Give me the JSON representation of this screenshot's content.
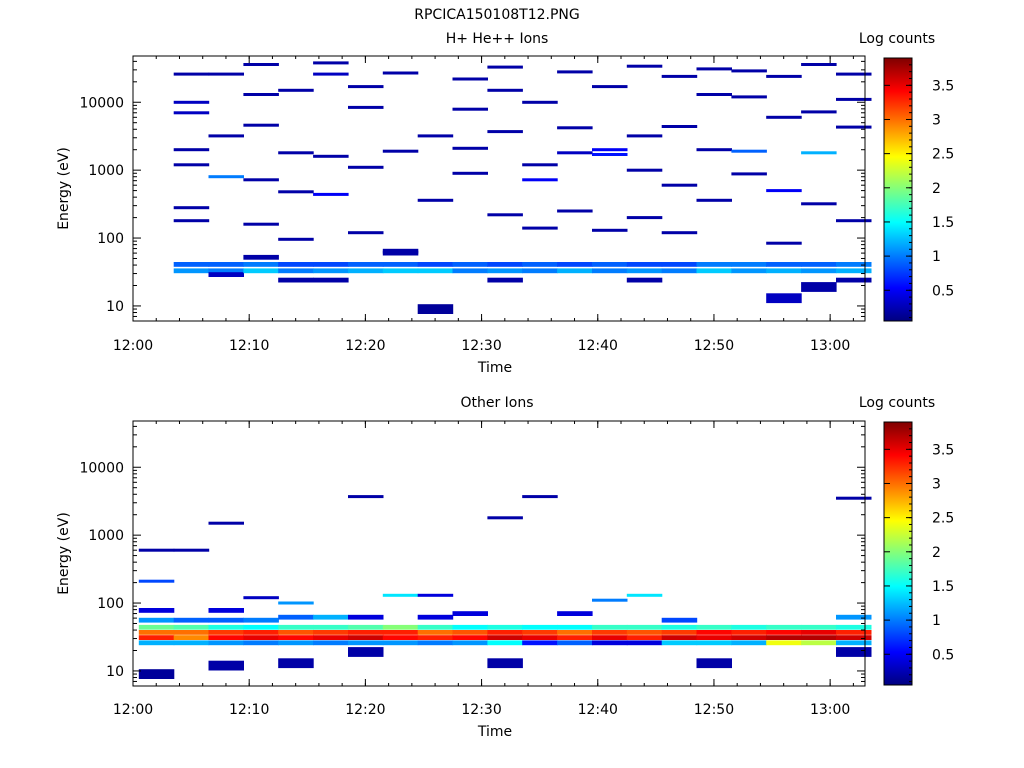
{
  "figure": {
    "title": "RPCICA150108T12.PNG"
  },
  "palette": {
    "colorbar_stops": [
      "#00007f",
      "#0000ff",
      "#007fff",
      "#00ffff",
      "#7fff7f",
      "#ffff00",
      "#ff7f00",
      "#ff0000",
      "#7f0000"
    ],
    "background": "#ffffff",
    "axis": "#000000"
  },
  "chart_data": [
    {
      "type": "heatmap",
      "title": "H+ He++ Ions",
      "xlabel": "Time",
      "ylabel": "Energy (eV)",
      "yscale": "log",
      "ylim": [
        6,
        48000
      ],
      "xlim": [
        "12:00",
        "13:03"
      ],
      "x_ticks": [
        "12:00",
        "12:10",
        "12:20",
        "12:30",
        "12:40",
        "12:50",
        "13:00"
      ],
      "y_ticks": [
        "10",
        "100",
        "1000",
        "10000"
      ],
      "colorbar": {
        "label": "Log counts",
        "ticks": [
          "0.5",
          "1",
          "1.5",
          "2",
          "2.5",
          "3",
          "3.5"
        ],
        "range": [
          0.05,
          3.9
        ]
      },
      "time_bins": [
        "12:02",
        "12:05",
        "12:08",
        "12:11",
        "12:14",
        "12:17",
        "12:20",
        "12:23",
        "12:26",
        "12:29",
        "12:32",
        "12:35",
        "12:38",
        "12:41",
        "12:44",
        "12:47",
        "12:50",
        "12:53",
        "12:56",
        "12:59",
        "13:02"
      ],
      "cells_note": "values in log counts; first number of each triple = time bin index, second = energy in eV, third = log counts",
      "cells": [
        [
          1,
          41,
          0.9
        ],
        [
          1,
          33,
          1.1
        ],
        [
          2,
          41,
          0.9
        ],
        [
          2,
          33,
          1.0
        ],
        [
          2,
          29,
          0.3
        ],
        [
          3,
          41,
          1.0
        ],
        [
          3,
          33,
          1.3
        ],
        [
          3,
          52,
          0.2
        ],
        [
          4,
          41,
          0.8
        ],
        [
          4,
          33,
          1.0
        ],
        [
          4,
          24,
          0.2
        ],
        [
          5,
          41,
          0.8
        ],
        [
          5,
          33,
          1.1
        ],
        [
          5,
          24,
          0.2
        ],
        [
          6,
          41,
          0.9
        ],
        [
          6,
          33,
          1.2
        ],
        [
          7,
          41,
          0.9
        ],
        [
          7,
          33,
          1.3
        ],
        [
          7,
          60,
          0.2
        ],
        [
          8,
          41,
          0.8
        ],
        [
          8,
          33,
          1.3
        ],
        [
          8,
          9,
          0.15
        ],
        [
          9,
          41,
          0.9
        ],
        [
          9,
          33,
          1.0
        ],
        [
          10,
          41,
          0.8
        ],
        [
          10,
          33,
          1.1
        ],
        [
          10,
          24,
          0.2
        ],
        [
          11,
          41,
          0.9
        ],
        [
          11,
          33,
          1.0
        ],
        [
          12,
          41,
          0.8
        ],
        [
          12,
          33,
          1.2
        ],
        [
          13,
          41,
          0.9
        ],
        [
          13,
          33,
          1.0
        ],
        [
          14,
          41,
          0.8
        ],
        [
          14,
          33,
          1.1
        ],
        [
          14,
          24,
          0.2
        ],
        [
          15,
          41,
          0.8
        ],
        [
          15,
          33,
          1.0
        ],
        [
          16,
          41,
          1.0
        ],
        [
          16,
          33,
          1.3
        ],
        [
          17,
          41,
          1.0
        ],
        [
          17,
          33,
          1.1
        ],
        [
          18,
          41,
          0.9
        ],
        [
          18,
          33,
          1.2
        ],
        [
          18,
          13,
          0.3
        ],
        [
          19,
          41,
          0.9
        ],
        [
          19,
          33,
          1.1
        ],
        [
          19,
          19,
          0.2
        ],
        [
          20,
          41,
          1.0
        ],
        [
          20,
          33,
          1.2
        ],
        [
          20,
          24,
          0.2
        ],
        [
          1,
          26000,
          0.2
        ],
        [
          1,
          10000,
          0.3
        ],
        [
          1,
          7000,
          0.3
        ],
        [
          1,
          2000,
          0.2
        ],
        [
          1,
          1200,
          0.2
        ],
        [
          1,
          280,
          0.2
        ],
        [
          1,
          180,
          0.2
        ],
        [
          2,
          26000,
          0.2
        ],
        [
          2,
          3200,
          0.2
        ],
        [
          2,
          800,
          1.0
        ],
        [
          3,
          36000,
          0.2
        ],
        [
          3,
          13000,
          0.2
        ],
        [
          3,
          4600,
          0.2
        ],
        [
          3,
          720,
          0.2
        ],
        [
          3,
          160,
          0.2
        ],
        [
          4,
          15000,
          0.2
        ],
        [
          4,
          1800,
          0.2
        ],
        [
          4,
          480,
          0.2
        ],
        [
          4,
          96,
          0.2
        ],
        [
          5,
          38000,
          0.2
        ],
        [
          5,
          26000,
          0.3
        ],
        [
          5,
          1600,
          0.2
        ],
        [
          5,
          440,
          0.5
        ],
        [
          6,
          17000,
          0.2
        ],
        [
          6,
          8400,
          0.2
        ],
        [
          6,
          1100,
          0.2
        ],
        [
          6,
          120,
          0.2
        ],
        [
          7,
          27000,
          0.2
        ],
        [
          7,
          1900,
          0.2
        ],
        [
          7,
          64,
          0.2
        ],
        [
          8,
          3200,
          0.2
        ],
        [
          8,
          360,
          0.2
        ],
        [
          9,
          22000,
          0.2
        ],
        [
          9,
          7900,
          0.2
        ],
        [
          9,
          2100,
          0.2
        ],
        [
          9,
          900,
          0.2
        ],
        [
          10,
          33000,
          0.2
        ],
        [
          10,
          15000,
          0.2
        ],
        [
          10,
          3700,
          0.2
        ],
        [
          10,
          220,
          0.2
        ],
        [
          11,
          10000,
          0.2
        ],
        [
          11,
          1200,
          0.2
        ],
        [
          11,
          720,
          0.5
        ],
        [
          11,
          140,
          0.2
        ],
        [
          12,
          28000,
          0.2
        ],
        [
          12,
          4200,
          0.2
        ],
        [
          12,
          1800,
          0.3
        ],
        [
          12,
          250,
          0.2
        ],
        [
          13,
          17000,
          0.2
        ],
        [
          13,
          2000,
          0.5
        ],
        [
          13,
          1700,
          0.6
        ],
        [
          13,
          130,
          0.2
        ],
        [
          14,
          34000,
          0.2
        ],
        [
          14,
          3200,
          0.2
        ],
        [
          14,
          1000,
          0.2
        ],
        [
          14,
          200,
          0.2
        ],
        [
          15,
          24000,
          0.2
        ],
        [
          15,
          4400,
          0.2
        ],
        [
          15,
          600,
          0.2
        ],
        [
          15,
          120,
          0.2
        ],
        [
          16,
          31000,
          0.2
        ],
        [
          16,
          13000,
          0.2
        ],
        [
          16,
          2000,
          0.2
        ],
        [
          16,
          360,
          0.2
        ],
        [
          17,
          29000,
          0.2
        ],
        [
          17,
          12000,
          0.2
        ],
        [
          17,
          1900,
          0.9
        ],
        [
          17,
          880,
          0.2
        ],
        [
          18,
          24000,
          0.2
        ],
        [
          18,
          6000,
          0.2
        ],
        [
          18,
          500,
          0.5
        ],
        [
          18,
          84,
          0.2
        ],
        [
          19,
          36000,
          0.2
        ],
        [
          19,
          7200,
          0.2
        ],
        [
          19,
          1800,
          1.2
        ],
        [
          19,
          320,
          0.2
        ],
        [
          20,
          26000,
          0.2
        ],
        [
          20,
          11000,
          0.2
        ],
        [
          20,
          4300,
          0.2
        ],
        [
          20,
          180,
          0.2
        ]
      ]
    },
    {
      "type": "heatmap",
      "title": "Other Ions",
      "xlabel": "Time",
      "ylabel": "Energy (eV)",
      "yscale": "log",
      "ylim": [
        6,
        48000
      ],
      "xlim": [
        "12:00",
        "13:03"
      ],
      "x_ticks": [
        "12:00",
        "12:10",
        "12:20",
        "12:30",
        "12:40",
        "12:50",
        "13:00"
      ],
      "y_ticks": [
        "10",
        "100",
        "1000",
        "10000"
      ],
      "colorbar": {
        "label": "Log counts",
        "ticks": [
          "0.5",
          "1",
          "1.5",
          "2",
          "2.5",
          "3",
          "3.5"
        ],
        "range": [
          0.05,
          3.9
        ]
      },
      "time_bins": [
        "12:02",
        "12:05",
        "12:08",
        "12:11",
        "12:14",
        "12:17",
        "12:20",
        "12:23",
        "12:26",
        "12:29",
        "12:32",
        "12:35",
        "12:38",
        "12:41",
        "12:44",
        "12:47",
        "12:50",
        "12:53",
        "12:56",
        "12:59",
        "13:02"
      ],
      "cells_note": "values in log counts; first number of each triple = time bin index, second = energy in eV, third = log counts",
      "cells": [
        [
          0,
          44,
          1.9
        ],
        [
          0,
          37,
          3.0
        ],
        [
          0,
          31,
          3.3
        ],
        [
          0,
          26,
          1.2
        ],
        [
          0,
          56,
          1.1
        ],
        [
          0,
          78,
          0.4
        ],
        [
          0,
          9,
          0.15
        ],
        [
          0,
          210,
          0.8
        ],
        [
          0,
          600,
          0.2
        ],
        [
          1,
          44,
          1.8
        ],
        [
          1,
          37,
          3.0
        ],
        [
          1,
          31,
          2.9
        ],
        [
          1,
          26,
          1.2
        ],
        [
          1,
          56,
          0.9
        ],
        [
          1,
          600,
          0.2
        ],
        [
          2,
          44,
          1.6
        ],
        [
          2,
          37,
          3.2
        ],
        [
          2,
          31,
          3.4
        ],
        [
          2,
          26,
          1.1
        ],
        [
          2,
          56,
          0.9
        ],
        [
          2,
          78,
          0.4
        ],
        [
          2,
          12,
          0.2
        ],
        [
          2,
          1500,
          0.2
        ],
        [
          3,
          44,
          1.5
        ],
        [
          3,
          37,
          3.3
        ],
        [
          3,
          31,
          3.5
        ],
        [
          3,
          26,
          1.0
        ],
        [
          3,
          56,
          1.0
        ],
        [
          3,
          120,
          0.3
        ],
        [
          4,
          44,
          1.7
        ],
        [
          4,
          37,
          3.1
        ],
        [
          4,
          31,
          3.4
        ],
        [
          4,
          26,
          1.1
        ],
        [
          4,
          62,
          0.9
        ],
        [
          4,
          100,
          1.1
        ],
        [
          4,
          13,
          0.2
        ],
        [
          5,
          44,
          1.7
        ],
        [
          5,
          37,
          3.2
        ],
        [
          5,
          31,
          3.5
        ],
        [
          5,
          26,
          1.0
        ],
        [
          5,
          62,
          1.2
        ],
        [
          6,
          44,
          1.8
        ],
        [
          6,
          37,
          3.3
        ],
        [
          6,
          31,
          3.6
        ],
        [
          6,
          26,
          1.1
        ],
        [
          6,
          62,
          0.4
        ],
        [
          6,
          19,
          0.2
        ],
        [
          6,
          3700,
          0.2
        ],
        [
          7,
          44,
          2.0
        ],
        [
          7,
          37,
          3.3
        ],
        [
          7,
          31,
          3.4
        ],
        [
          7,
          26,
          1.1
        ],
        [
          7,
          130,
          1.4
        ],
        [
          8,
          44,
          1.7
        ],
        [
          8,
          37,
          3.0
        ],
        [
          8,
          31,
          3.3
        ],
        [
          8,
          26,
          1.0
        ],
        [
          8,
          62,
          0.4
        ],
        [
          8,
          130,
          0.4
        ],
        [
          9,
          44,
          1.5
        ],
        [
          9,
          37,
          3.1
        ],
        [
          9,
          31,
          3.4
        ],
        [
          9,
          26,
          1.1
        ],
        [
          9,
          70,
          0.4
        ],
        [
          10,
          44,
          1.6
        ],
        [
          10,
          37,
          3.3
        ],
        [
          10,
          31,
          3.6
        ],
        [
          10,
          26,
          1.5
        ],
        [
          10,
          13,
          0.2
        ],
        [
          10,
          1800,
          0.2
        ],
        [
          11,
          44,
          1.5
        ],
        [
          11,
          37,
          3.2
        ],
        [
          11,
          31,
          3.5
        ],
        [
          11,
          26,
          0.6
        ],
        [
          11,
          3700,
          0.2
        ],
        [
          12,
          44,
          1.5
        ],
        [
          12,
          37,
          3.0
        ],
        [
          12,
          31,
          3.3
        ],
        [
          12,
          26,
          0.9
        ],
        [
          12,
          70,
          0.4
        ],
        [
          13,
          44,
          1.7
        ],
        [
          13,
          37,
          3.2
        ],
        [
          13,
          31,
          3.5
        ],
        [
          13,
          26,
          0.4
        ],
        [
          13,
          110,
          1.0
        ],
        [
          14,
          44,
          1.7
        ],
        [
          14,
          37,
          3.1
        ],
        [
          14,
          31,
          3.3
        ],
        [
          14,
          26,
          0.4
        ],
        [
          14,
          130,
          1.4
        ],
        [
          15,
          44,
          1.6
        ],
        [
          15,
          37,
          3.2
        ],
        [
          15,
          31,
          3.6
        ],
        [
          15,
          26,
          1.3
        ],
        [
          15,
          56,
          0.8
        ],
        [
          16,
          44,
          1.7
        ],
        [
          16,
          37,
          3.4
        ],
        [
          16,
          31,
          3.5
        ],
        [
          16,
          26,
          1.3
        ],
        [
          16,
          13,
          0.2
        ],
        [
          17,
          44,
          1.6
        ],
        [
          17,
          37,
          3.3
        ],
        [
          17,
          31,
          3.6
        ],
        [
          17,
          26,
          1.2
        ],
        [
          18,
          44,
          1.7
        ],
        [
          18,
          37,
          3.4
        ],
        [
          18,
          31,
          3.7
        ],
        [
          18,
          26,
          2.4
        ],
        [
          19,
          44,
          1.7
        ],
        [
          19,
          37,
          3.5
        ],
        [
          19,
          31,
          3.7
        ],
        [
          19,
          26,
          2.2
        ],
        [
          20,
          44,
          1.6
        ],
        [
          20,
          37,
          3.3
        ],
        [
          20,
          31,
          3.6
        ],
        [
          20,
          26,
          1.2
        ],
        [
          20,
          62,
          1.1
        ],
        [
          20,
          19,
          0.2
        ],
        [
          20,
          3500,
          0.2
        ]
      ]
    }
  ]
}
